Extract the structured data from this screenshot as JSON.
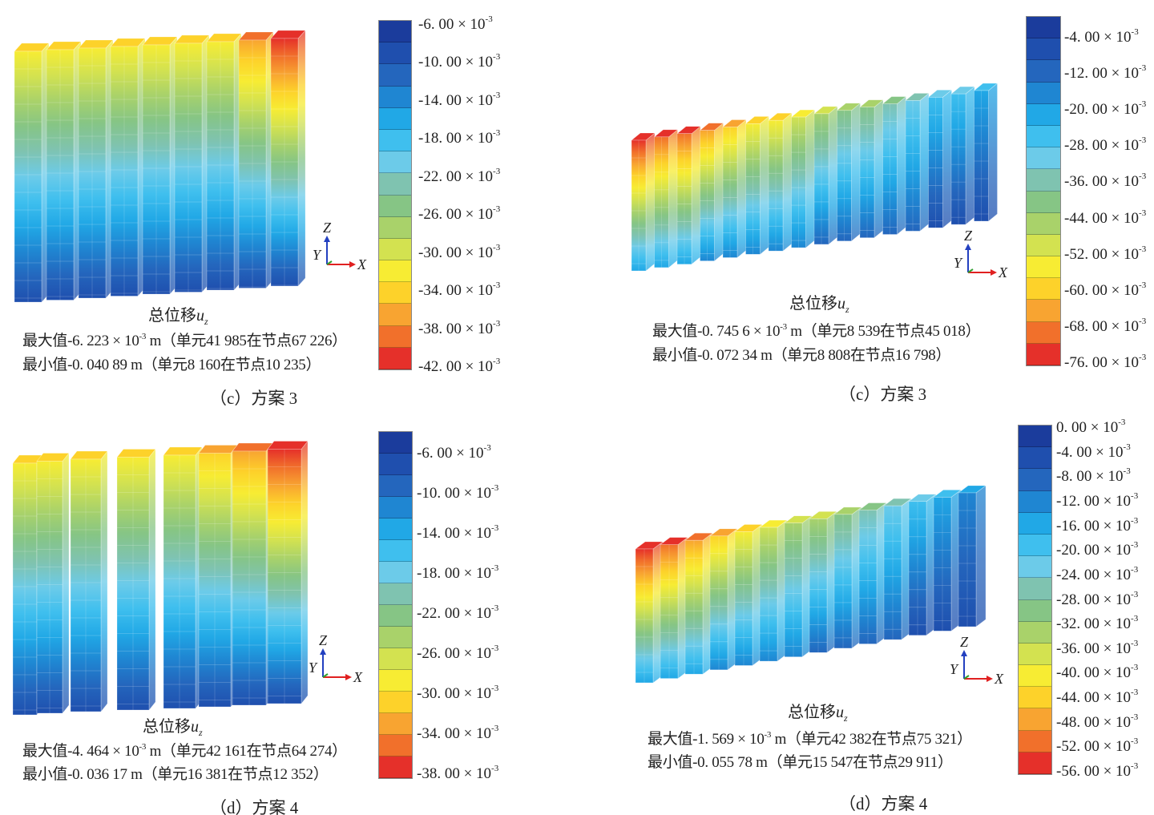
{
  "colormap": [
    "#1b3c9c",
    "#1f4fae",
    "#2466bd",
    "#1f86d2",
    "#21a8e6",
    "#3fbfee",
    "#6ccbe9",
    "#7fc3b0",
    "#86c585",
    "#a9d26a",
    "#d3e250",
    "#f7ec33",
    "#fdd22a",
    "#f8a431",
    "#f1702b",
    "#e5302a"
  ],
  "exponent": "-3",
  "axis": {
    "z": "Z",
    "y": "Y",
    "x": "X"
  },
  "panels": [
    {
      "id": "a",
      "title_prefix": "总位移",
      "title_var": "u",
      "title_sub": "z",
      "max_line": "最大值-6. 223 × 10",
      "max_exp": "-3",
      "max_tail": " m（单元41 985在节点67 226）",
      "min_line": "最小值-0. 040  89  m（单元8 160在节点10 235）",
      "subcaption": "（c）方案 3",
      "legend": [
        "-6. 00 × 10",
        "-10. 00 × 10",
        "-14. 00 × 10",
        "-18. 00 × 10",
        "-22. 00 × 10",
        "-26. 00 × 10",
        "-30. 00 × 10",
        "-34. 00 × 10",
        "-38. 00 × 10",
        "-42. 00 × 10"
      ]
    },
    {
      "id": "b",
      "title_prefix": "总位移",
      "title_var": "u",
      "title_sub": "z",
      "max_line": "最大值-0. 745  6 × 10",
      "max_exp": "-3",
      "max_tail": " m（单元8 539在节点45 018）",
      "min_line": "最小值-0. 072  34  m（单元8 808在节点16 798）",
      "subcaption": "（c）方案 3",
      "legend": [
        "-4. 00 × 10",
        "-12. 00 × 10",
        "-20. 00 × 10",
        "-28. 00 × 10",
        "-36. 00 × 10",
        "-44. 00 × 10",
        "-52. 00 × 10",
        "-60. 00 × 10",
        "-68. 00 × 10",
        "-76. 00 × 10"
      ]
    },
    {
      "id": "c",
      "title_prefix": "总位移",
      "title_var": "u",
      "title_sub": "z",
      "max_line": "最大值-4. 464 × 10",
      "max_exp": "-3",
      "max_tail": " m（单元42 161在节点64 274）",
      "min_line": "最小值-0. 036  17  m（单元16 381在节点12 352）",
      "subcaption": "（d）方案 4",
      "legend": [
        "-6. 00 × 10",
        "-10. 00 × 10",
        "-14. 00 × 10",
        "-18. 00 × 10",
        "-22. 00 × 10",
        "-26. 00 × 10",
        "-30. 00 × 10",
        "-34. 00 × 10",
        "-38. 00 × 10"
      ]
    },
    {
      "id": "d",
      "title_prefix": "总位移",
      "title_var": "u",
      "title_sub": "z",
      "max_line": "最大值-1. 569 × 10",
      "max_exp": "-3",
      "max_tail": " m（单元42 382在节点75 321）",
      "min_line": "最小值-0. 055  78  m（单元15 547在节点29 911）",
      "subcaption": "（d）方案 4",
      "legend": [
        "0. 00 × 10",
        "-4. 00 × 10",
        "-8. 00 × 10",
        "-12. 00 × 10",
        "-16. 00 × 10",
        "-20. 00 × 10",
        "-24. 00 × 10",
        "-28. 00 × 10",
        "-32. 00 × 10",
        "-36. 00 × 10",
        "-40. 00 × 10",
        "-44. 00 × 10",
        "-48. 00 × 10",
        "-52. 00 × 10",
        "-56. 00 × 10"
      ]
    }
  ]
}
